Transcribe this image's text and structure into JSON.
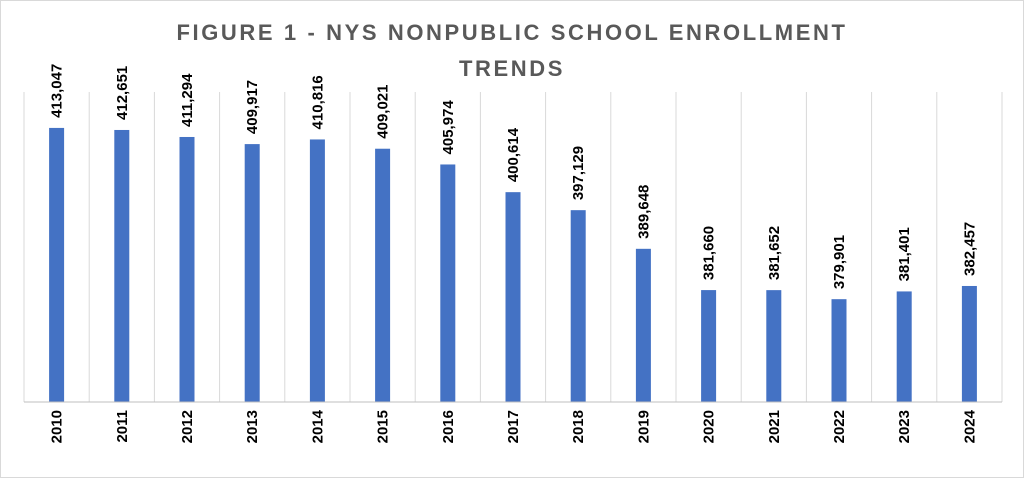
{
  "chart_data": {
    "type": "bar",
    "title_lines": [
      "FIGURE 1 - NYS NONPUBLIC SCHOOL ENROLLMENT",
      "TRENDS"
    ],
    "categories": [
      "2010",
      "2011",
      "2012",
      "2013",
      "2014",
      "2015",
      "2016",
      "2017",
      "2018",
      "2019",
      "2020",
      "2021",
      "2022",
      "2023",
      "2024"
    ],
    "values": [
      413047,
      412651,
      411294,
      409917,
      410816,
      409021,
      405974,
      400614,
      397129,
      389648,
      381660,
      381652,
      379901,
      381401,
      382457
    ],
    "data_labels": [
      "413,047",
      "412,651",
      "411,294",
      "409,917",
      "410,816",
      "409,021",
      "405,974",
      "400,614",
      "397,129",
      "389,648",
      "381,660",
      "381,652",
      "379,901",
      "381,401",
      "382,457"
    ],
    "xlabel": "",
    "ylabel": "",
    "ylim": [
      360000,
      420000
    ],
    "grid": "vertical category separators",
    "legend": "none",
    "colors": {
      "bar": "#4472C4",
      "gridline": "#d9d9d9",
      "axis": "#bfbfbf",
      "title": "#595959",
      "label": "#000000"
    }
  }
}
